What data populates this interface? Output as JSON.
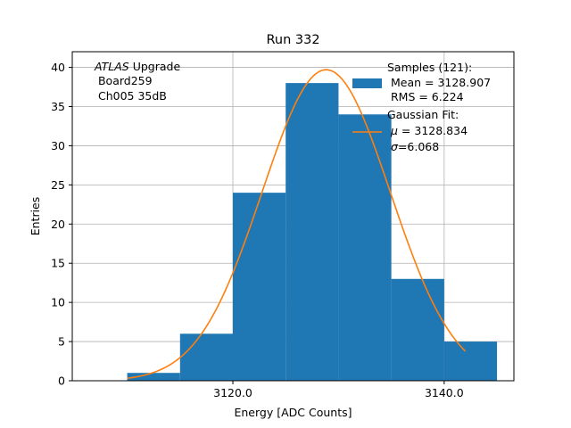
{
  "chart_data": {
    "type": "bar",
    "title": "Run 332",
    "xlabel": "Energy [ADC Counts]",
    "ylabel": "Entries",
    "xlim": [
      3104.8,
      3146.6
    ],
    "ylim": [
      0,
      42
    ],
    "x_ticks": [
      3120.0,
      3140.0
    ],
    "x_tick_labels": [
      "3120.0",
      "3140.0"
    ],
    "y_ticks": [
      0,
      5,
      10,
      15,
      20,
      25,
      30,
      35,
      40
    ],
    "y_tick_labels": [
      "0",
      "5",
      "10",
      "15",
      "20",
      "25",
      "30",
      "35",
      "40"
    ],
    "grid": true,
    "bar_color": "#1f77b4",
    "fit_color": "#ff7f0e",
    "histogram": {
      "bins": [
        {
          "x0": 3110.0,
          "x1": 3115.0,
          "count": 1
        },
        {
          "x0": 3115.0,
          "x1": 3120.0,
          "count": 6
        },
        {
          "x0": 3120.0,
          "x1": 3125.0,
          "count": 24
        },
        {
          "x0": 3125.0,
          "x1": 3130.0,
          "count": 38
        },
        {
          "x0": 3130.0,
          "x1": 3135.0,
          "count": 34
        },
        {
          "x0": 3135.0,
          "x1": 3140.0,
          "count": 13
        },
        {
          "x0": 3140.0,
          "x1": 3145.0,
          "count": 5
        }
      ]
    },
    "gaussian_fit": {
      "mu": 3128.834,
      "sigma": 6.068,
      "amplitude": 39.7,
      "x_range": [
        3110.0,
        3142.0
      ]
    },
    "annotation": {
      "line1_italic": "ATLAS",
      "line1_rest": " Upgrade",
      "line2": " Board259",
      "line3": " Ch005 35dB"
    },
    "legend": {
      "placement": "upper right",
      "samples_lines": [
        "Samples (121):",
        " Mean = 3128.907",
        " RMS = 6.224"
      ],
      "fit_header": "Gaussian Fit:",
      "fit_mu_symbol": "μ",
      "fit_mu_text": " = 3128.834",
      "fit_sigma_symbol": "σ",
      "fit_sigma_text": "=6.068"
    }
  }
}
